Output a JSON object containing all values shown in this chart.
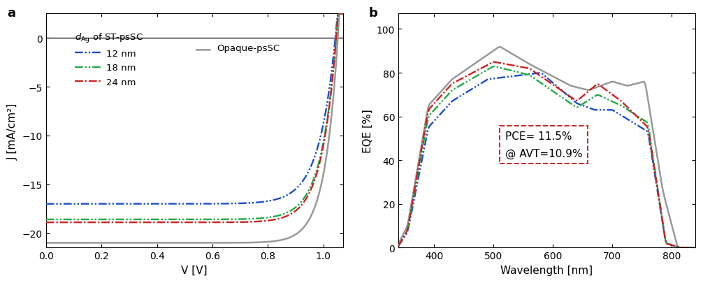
{
  "panel_a": {
    "xlabel": "V [V]",
    "ylabel": "J [mA/cm²]",
    "xlim": [
      0.0,
      1.07
    ],
    "ylim": [
      -21.5,
      2.5
    ],
    "yticks": [
      0,
      -5,
      -10,
      -15,
      -20
    ],
    "xticks": [
      0.0,
      0.2,
      0.4,
      0.6,
      0.8,
      1.0
    ],
    "legend_title": "$d_{\\mathrm{Ag}}$ of ST-psSC",
    "opaque_label": "Opaque-psSC",
    "jv_opaque": {
      "jsc": -21.0,
      "voc": 1.052,
      "n_id": 1.85
    },
    "jv_12nm": {
      "jsc": -17.0,
      "voc": 1.043,
      "n_id": 2.3
    },
    "jv_18nm": {
      "jsc": -18.6,
      "voc": 1.046,
      "n_id": 2.1
    },
    "jv_24nm": {
      "jsc": -18.9,
      "voc": 1.046,
      "n_id": 2.05
    }
  },
  "panel_b": {
    "xlabel": "Wavelength [nm]",
    "ylabel": "EQE [%]",
    "xlim": [
      340,
      840
    ],
    "ylim": [
      0,
      107
    ],
    "yticks": [
      0,
      20,
      40,
      60,
      80,
      100
    ],
    "xticks": [
      400,
      500,
      600,
      700,
      800
    ],
    "annotation": "PCE= 11.5%\n@ AVT=10.9%",
    "annotation_color": "#cc2222"
  },
  "colors": {
    "opaque": "#999999",
    "12nm": "#1a4fcc",
    "18nm": "#22aa44",
    "24nm": "#cc2222"
  }
}
